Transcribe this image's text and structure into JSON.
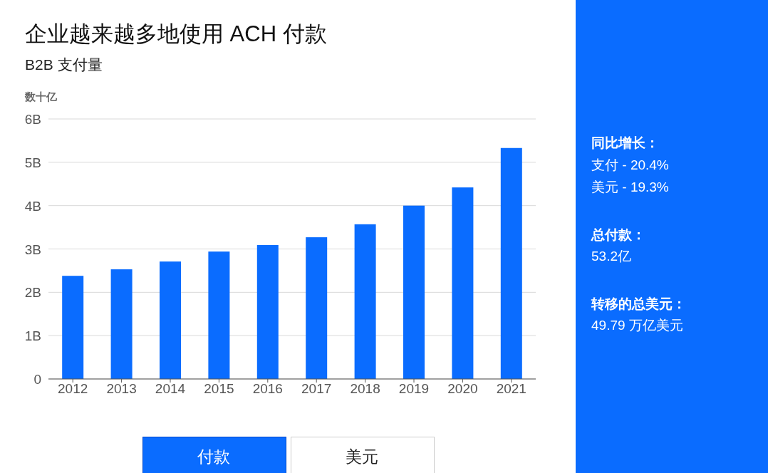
{
  "chart_data": [
    {
      "type": "bar",
      "title": "企业越来越多地使用 ACH 付款",
      "subtitle": "B2B 支付量",
      "ylabel": "数十亿",
      "categories": [
        "2012",
        "2013",
        "2014",
        "2015",
        "2016",
        "2017",
        "2018",
        "2019",
        "2020",
        "2021"
      ],
      "values": [
        2.38,
        2.53,
        2.71,
        2.94,
        3.09,
        3.27,
        3.57,
        4.0,
        4.42,
        5.33
      ],
      "color": "#0a6cff",
      "ylim": [
        0,
        6
      ],
      "yticks": [
        0,
        {
          "value": 1,
          "label": "1B"
        },
        {
          "value": 2,
          "label": "2B"
        },
        {
          "value": 3,
          "label": "3B"
        },
        {
          "value": 4,
          "label": "4B"
        },
        {
          "value": 5,
          "label": "5B"
        },
        {
          "value": 6,
          "label": "6B"
        }
      ],
      "grid": "y",
      "annotations": [
        "付款",
        "美元"
      ]
    },
    {
      "type": "other",
      "annotations": [
        "同比增长：",
        "支付 - 20.4%",
        "美元 - 19.3%",
        "总付款：",
        "53.2亿",
        "转移的总美元：",
        "49.79 万亿美元"
      ]
    }
  ]
}
